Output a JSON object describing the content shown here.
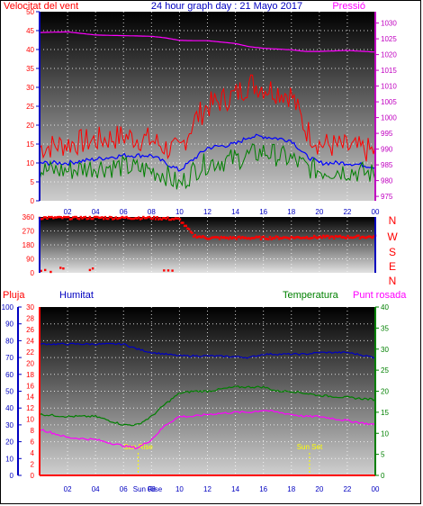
{
  "header": {
    "left_title": "Velocitat del vent",
    "center_title": "24 hour graph day : 21 Mayo 2017",
    "right_title": "Pressió"
  },
  "colors": {
    "wind_gust": "#ff0000",
    "wind_avg": "#0000ff",
    "wind_speed": "#008000",
    "pressure": "#ff00ff",
    "direction": "#ff0000",
    "rain": "#ff0000",
    "humidity": "#0000c0",
    "temperature": "#008000",
    "dewpoint": "#ff00ff",
    "sun": "#ffff00",
    "axis": "#0000c0"
  },
  "chart_data": [
    {
      "type": "line",
      "id": "wind-pressure",
      "x_tick_labels": [
        "02",
        "04",
        "06",
        "08",
        "10",
        "12",
        "14",
        "16",
        "18",
        "20",
        "22",
        "00"
      ],
      "y_left_ticks": [
        0,
        5,
        10,
        15,
        20,
        25,
        30,
        35,
        40,
        45,
        50
      ],
      "y_left_range": [
        0,
        50
      ],
      "y_right_ticks": [
        975,
        980,
        985,
        990,
        995,
        1000,
        1005,
        1010,
        1015,
        1020,
        1025,
        1030
      ],
      "y_right_range": [
        973.6,
        1033.6
      ],
      "x_hours": [
        0,
        2,
        4,
        6,
        8,
        9,
        10,
        11,
        12,
        14,
        15,
        16,
        18,
        19,
        20,
        22,
        24
      ],
      "series": [
        {
          "key": "gust",
          "axis": "left",
          "values": [
            13,
            14,
            15,
            16,
            15,
            13,
            12,
            20,
            24,
            27,
            30,
            29,
            27,
            18,
            14,
            13,
            12
          ]
        },
        {
          "key": "avg",
          "axis": "left",
          "values": [
            10,
            10,
            11,
            12,
            12,
            10,
            8,
            11,
            14,
            15,
            17,
            17,
            16,
            12,
            10,
            10,
            9
          ]
        },
        {
          "key": "speed",
          "axis": "left",
          "values": [
            8,
            8,
            9,
            9,
            8,
            7,
            4,
            8,
            10,
            11,
            12,
            13,
            11,
            9,
            8,
            8,
            7
          ]
        },
        {
          "key": "pressure",
          "axis": "right",
          "values": [
            1027,
            1027.2,
            1026.2,
            1026,
            1025.8,
            1025.3,
            1024.5,
            1024.4,
            1024.4,
            1023.5,
            1022.5,
            1022,
            1021.5,
            1021,
            1021,
            1021.3,
            1020.8
          ]
        }
      ]
    },
    {
      "type": "scatter",
      "id": "wind-direction",
      "y_ticks": [
        0,
        90,
        180,
        270,
        360
      ],
      "y_range": [
        0,
        360
      ],
      "direction_labels": [
        "N",
        "W",
        "S",
        "E",
        "N"
      ],
      "segments": [
        {
          "x": [
            0,
            8,
            10,
            11,
            12,
            16,
            20,
            24
          ],
          "y": [
            355,
            355,
            345,
            240,
            225,
            225,
            230,
            232
          ]
        }
      ],
      "points": [
        {
          "x": 0.1,
          "y": 12
        },
        {
          "x": 0.4,
          "y": 18
        },
        {
          "x": 0.8,
          "y": 6
        },
        {
          "x": 1.5,
          "y": 32
        },
        {
          "x": 1.7,
          "y": 28
        },
        {
          "x": 3.6,
          "y": 18
        },
        {
          "x": 3.8,
          "y": 28
        },
        {
          "x": 8.9,
          "y": 15
        },
        {
          "x": 9.2,
          "y": 15
        },
        {
          "x": 9.5,
          "y": 14
        }
      ]
    },
    {
      "type": "line",
      "id": "humidity-temperature",
      "header": {
        "rain_label": "Pluja",
        "humidity_label": "Humitat",
        "temperature_label": "Temperatura",
        "dewpoint_label": "Punt rosada"
      },
      "x_tick_labels": [
        "02",
        "04",
        "06",
        "08",
        "10",
        "12",
        "14",
        "16",
        "18",
        "20",
        "22",
        "00"
      ],
      "rain_ticks": [
        0,
        2,
        4,
        6,
        8,
        10,
        12,
        14,
        16,
        18,
        20,
        22,
        24,
        26,
        28,
        30
      ],
      "rain_range": [
        0,
        30
      ],
      "humidity_ticks": [
        0,
        10,
        20,
        30,
        40,
        50,
        60,
        70,
        80,
        90,
        100
      ],
      "humidity_range": [
        0,
        100
      ],
      "temperature_ticks": [
        0,
        5,
        10,
        15,
        20,
        25,
        30,
        35,
        40
      ],
      "temperature_range": [
        0,
        40
      ],
      "x_hours": [
        0,
        2,
        4,
        6,
        7,
        8,
        9,
        10,
        11,
        12,
        14,
        15,
        16,
        17,
        18,
        19,
        20,
        22,
        24
      ],
      "series": [
        {
          "key": "humidity",
          "axis": "humidity",
          "values": [
            78,
            78,
            78,
            78,
            75,
            73,
            72,
            71,
            71,
            71,
            70.5,
            70,
            72,
            72,
            72,
            72,
            73,
            73,
            70
          ]
        },
        {
          "key": "temperature",
          "axis": "temperature",
          "values": [
            14.5,
            14,
            14,
            12,
            12,
            14,
            17,
            19.5,
            20,
            20,
            21,
            21,
            21,
            20,
            20,
            19.5,
            19,
            18.5,
            18
          ]
        },
        {
          "key": "dewpoint",
          "axis": "temperature",
          "values": [
            11,
            9,
            8.5,
            7,
            6.5,
            8.5,
            12,
            14,
            14,
            14.5,
            15,
            15,
            15.5,
            15,
            14.5,
            14,
            14,
            13,
            12
          ]
        },
        {
          "key": "rain",
          "axis": "rain",
          "values": [
            0,
            0,
            0,
            0,
            0,
            0,
            0,
            0,
            0,
            0,
            0,
            0,
            0,
            0,
            0,
            0,
            0,
            0,
            0
          ]
        }
      ],
      "sun_rise": {
        "label": "Sun Rise",
        "hour": 7.05
      },
      "sun_set": {
        "label": "Sun Set",
        "hour": 19.3
      },
      "bottom_label": "Sun Rise"
    }
  ]
}
